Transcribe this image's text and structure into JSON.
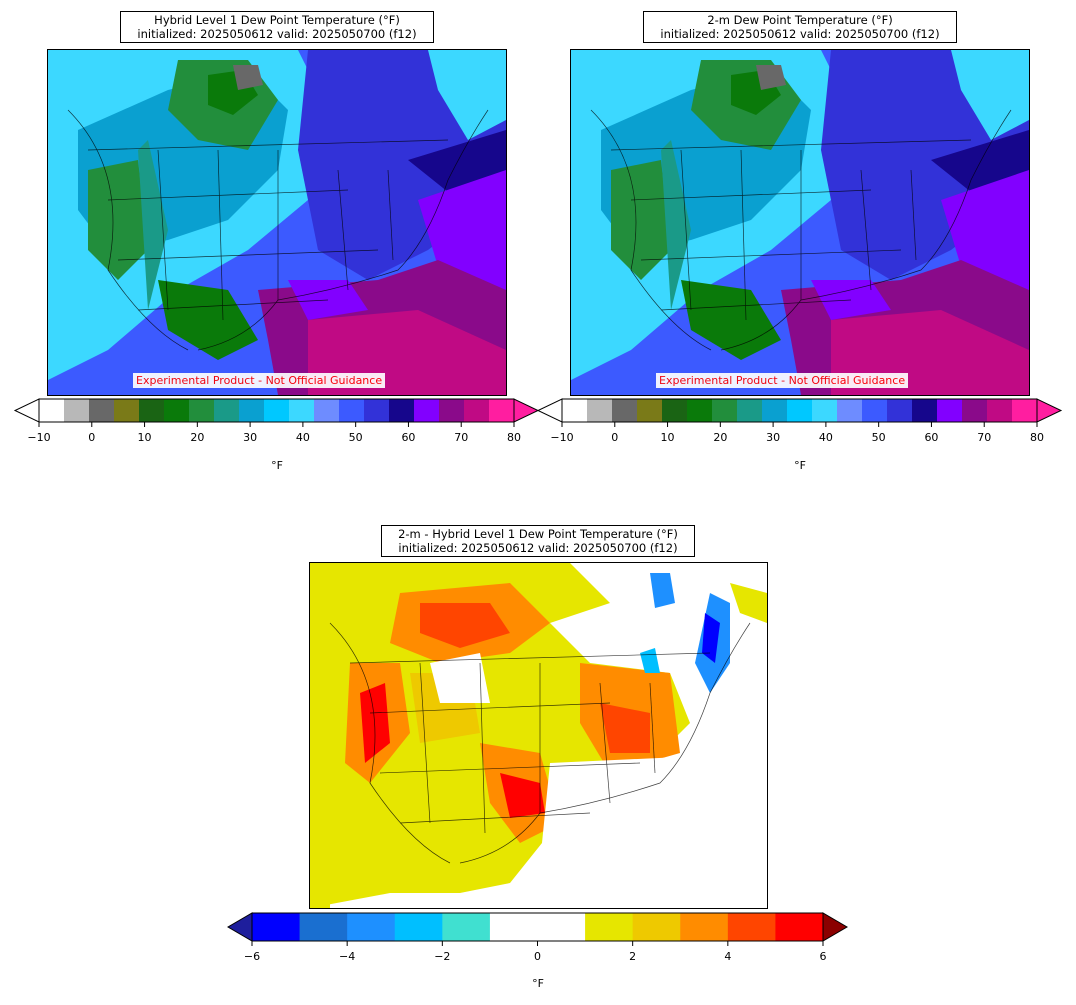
{
  "panels": [
    {
      "title_line1": "Hybrid Level 1 Dew Point Temperature (°F)",
      "title_line2": "initialized: 2025050612 valid: 2025050700 (f12)",
      "disclaimer": "Experimental Product - Not Official Guidance",
      "colorbar": {
        "unit": "°F",
        "ticks": [
          "−10",
          "0",
          "10",
          "20",
          "30",
          "40",
          "50",
          "60",
          "70",
          "80"
        ],
        "colors": [
          "#ffffff",
          "#b8b8b8",
          "#686868",
          "#7a7a18",
          "#1a6414",
          "#0a7a0a",
          "#228e3c",
          "#1a9a88",
          "#0aa0d0",
          "#00c8ff",
          "#3cd8ff",
          "#6e8cff",
          "#3c5aff",
          "#3232d8",
          "#16068c",
          "#8200ff",
          "#8a0a8a",
          "#c00a84",
          "#ff1ea0"
        ],
        "min_color": "#ffffff",
        "max_color": "#ff1ea0"
      }
    },
    {
      "title_line1": "2-m Dew Point Temperature (°F)",
      "title_line2": "initialized: 2025050612 valid: 2025050700 (f12)",
      "disclaimer": "Experimental Product - Not Official Guidance",
      "colorbar": {
        "unit": "°F",
        "ticks": [
          "−10",
          "0",
          "10",
          "20",
          "30",
          "40",
          "50",
          "60",
          "70",
          "80"
        ],
        "colors": [
          "#ffffff",
          "#b8b8b8",
          "#686868",
          "#7a7a18",
          "#1a6414",
          "#0a7a0a",
          "#228e3c",
          "#1a9a88",
          "#0aa0d0",
          "#00c8ff",
          "#3cd8ff",
          "#6e8cff",
          "#3c5aff",
          "#3232d8",
          "#16068c",
          "#8200ff",
          "#8a0a8a",
          "#c00a84",
          "#ff1ea0"
        ],
        "min_color": "#ffffff",
        "max_color": "#ff1ea0"
      }
    },
    {
      "title_line1": "2-m - Hybrid Level 1 Dew Point Temperature (°F)",
      "title_line2": "initialized: 2025050612 valid: 2025050700 (f12)",
      "colorbar": {
        "unit": "°F",
        "ticks": [
          "−6",
          "−4",
          "−2",
          "0",
          "2",
          "4",
          "6"
        ],
        "colors": [
          "#0000ff",
          "#1a6fd0",
          "#1e90ff",
          "#00bfff",
          "#40e0d0",
          "#ffffff",
          "#ffffff",
          "#e6e600",
          "#eec900",
          "#ff8c00",
          "#ff4500",
          "#ff0000"
        ],
        "min_color": "#1e1e9c",
        "max_color": "#8b0000"
      }
    }
  ]
}
